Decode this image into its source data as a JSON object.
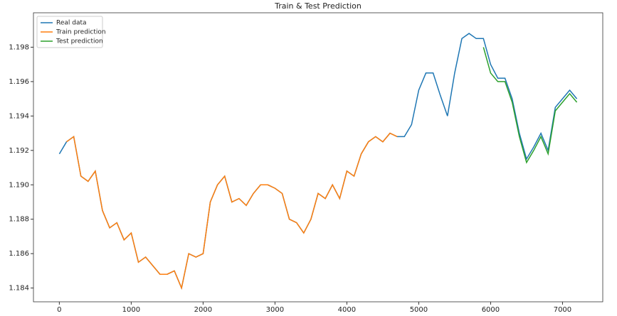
{
  "chart_data": {
    "type": "line",
    "title": "Train & Test Prediction",
    "x": [
      0,
      100,
      200,
      300,
      400,
      500,
      600,
      700,
      800,
      900,
      1000,
      1100,
      1200,
      1300,
      1400,
      1500,
      1600,
      1700,
      1800,
      1900,
      2000,
      2100,
      2200,
      2300,
      2400,
      2500,
      2600,
      2700,
      2800,
      2900,
      3000,
      3100,
      3200,
      3300,
      3400,
      3500,
      3600,
      3700,
      3800,
      3900,
      4000,
      4100,
      4200,
      4300,
      4400,
      4500,
      4600,
      4700,
      4800,
      4900,
      5000,
      5100,
      5200,
      5300,
      5400,
      5500,
      5600,
      5700,
      5800,
      5900,
      6000,
      6100,
      6200,
      6300,
      6400,
      6500,
      6600,
      6700,
      6800,
      6900,
      7000,
      7100,
      7200
    ],
    "series": [
      {
        "name": "Real data",
        "color": "#1f77b4",
        "values": [
          1.1918,
          1.1925,
          1.1928,
          1.1905,
          1.1902,
          1.1908,
          1.1885,
          1.1875,
          1.1878,
          1.1868,
          1.1872,
          1.1855,
          1.1858,
          1.1853,
          1.1848,
          1.1848,
          1.185,
          1.184,
          1.186,
          1.1858,
          1.186,
          1.189,
          1.19,
          1.1905,
          1.189,
          1.1892,
          1.1888,
          1.1895,
          1.19,
          1.19,
          1.1898,
          1.1895,
          1.188,
          1.1878,
          1.1872,
          1.188,
          1.1895,
          1.1892,
          1.19,
          1.1892,
          1.1908,
          1.1905,
          1.1918,
          1.1925,
          1.1928,
          1.1925,
          1.193,
          1.1928,
          1.1928,
          1.1935,
          1.1955,
          1.1965,
          1.1965,
          1.1952,
          1.194,
          1.1965,
          1.1985,
          1.1988,
          1.1985,
          1.1985,
          1.197,
          1.1962,
          1.1962,
          1.195,
          1.193,
          1.1915,
          1.1922,
          1.193,
          1.192,
          1.1945,
          1.195,
          1.1955,
          1.195
        ]
      },
      {
        "name": "Train prediction",
        "color": "#ff7f0e",
        "values": [
          null,
          1.1925,
          1.1928,
          1.1905,
          1.1902,
          1.1908,
          1.1885,
          1.1875,
          1.1878,
          1.1868,
          1.1872,
          1.1855,
          1.1858,
          1.1853,
          1.1848,
          1.1848,
          1.185,
          1.184,
          1.186,
          1.1858,
          1.186,
          1.189,
          1.19,
          1.1905,
          1.189,
          1.1892,
          1.1888,
          1.1895,
          1.19,
          1.19,
          1.1898,
          1.1895,
          1.188,
          1.1878,
          1.1872,
          1.188,
          1.1895,
          1.1892,
          1.19,
          1.1892,
          1.1908,
          1.1905,
          1.1918,
          1.1925,
          1.1928,
          1.1925,
          1.193,
          1.1928,
          null,
          null,
          null,
          null,
          null,
          null,
          null,
          null,
          null,
          null,
          null,
          null,
          null,
          null,
          null,
          null,
          null,
          null,
          null,
          null,
          null,
          null,
          null,
          null,
          null
        ]
      },
      {
        "name": "Test prediction",
        "color": "#2ca02c",
        "values": [
          null,
          null,
          null,
          null,
          null,
          null,
          null,
          null,
          null,
          null,
          null,
          null,
          null,
          null,
          null,
          null,
          null,
          null,
          null,
          null,
          null,
          null,
          null,
          null,
          null,
          null,
          null,
          null,
          null,
          null,
          null,
          null,
          null,
          null,
          null,
          null,
          null,
          null,
          null,
          null,
          null,
          null,
          null,
          null,
          null,
          null,
          null,
          null,
          null,
          null,
          null,
          null,
          null,
          null,
          null,
          null,
          null,
          null,
          null,
          1.198,
          1.1965,
          1.196,
          1.196,
          1.1948,
          1.1928,
          1.1913,
          1.192,
          1.1928,
          1.1918,
          1.1943,
          1.1948,
          1.1953,
          1.1948
        ]
      }
    ],
    "xlim": [
      -360,
      7560
    ],
    "xticks": [
      0,
      1000,
      2000,
      3000,
      4000,
      5000,
      6000,
      7000
    ],
    "ylim": [
      1.1832,
      1.2
    ],
    "yticks": [
      1.184,
      1.186,
      1.188,
      {
        "value": 1.19,
        "label": "1.190"
      },
      1.192,
      1.194,
      1.196,
      1.198
    ],
    "legend": "upper left"
  }
}
